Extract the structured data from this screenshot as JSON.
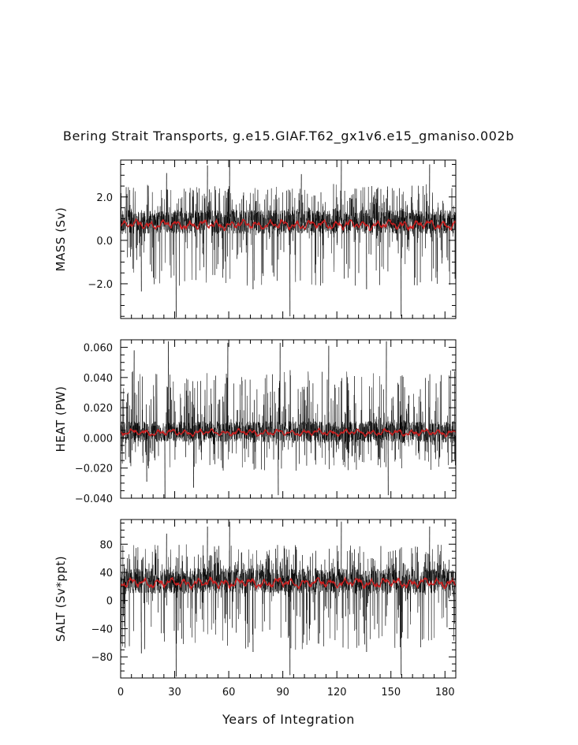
{
  "title": "Bering Strait Transports, g.e15.GIAF.T62_gx1v6.e15_gmaniso.002b",
  "xlabel": "Years of Integration",
  "colors": {
    "raw": "#000000",
    "smooth": "#cc1f1f",
    "axis": "#000000"
  },
  "chart_data": [
    {
      "type": "line",
      "ylabel": "MASS (Sv)",
      "xlim": [
        0,
        186
      ],
      "ylim": [
        -3.6,
        3.7
      ],
      "yticks": [
        -2.0,
        0.0,
        2.0
      ],
      "ytick_labels": [
        "−2.0",
        "0.0",
        "2.0"
      ],
      "xticks": [
        0,
        30,
        60,
        90,
        120,
        150,
        180
      ],
      "xtick_labels": [],
      "grid": false,
      "series": [
        {
          "kind": "monthly",
          "level": 0.85,
          "spread": 0.55,
          "peak_up": 2.6,
          "peak_down": 2.1,
          "extremes": [
            {
              "x": 48.2,
              "y": 3.45
            },
            {
              "x": 60.5,
              "y": 3.7
            },
            {
              "x": 122.5,
              "y": 3.7
            },
            {
              "x": 171.5,
              "y": 3.5
            },
            {
              "x": 30.8,
              "y": -3.55
            },
            {
              "x": 94.0,
              "y": -3.5
            },
            {
              "x": 155.7,
              "y": -3.5
            },
            {
              "x": 11.5,
              "y": -2.35
            },
            {
              "x": 25.5,
              "y": 3.1
            },
            {
              "x": 73.5,
              "y": -2.25
            },
            {
              "x": 136.5,
              "y": -2.25
            },
            {
              "x": 100.3,
              "y": 3.05
            }
          ]
        },
        {
          "kind": "smoothed",
          "level": 0.72,
          "amplitude": 0.22
        }
      ]
    },
    {
      "type": "line",
      "ylabel": "HEAT (PW)",
      "xlim": [
        0,
        186
      ],
      "ylim": [
        -0.04,
        0.065
      ],
      "yticks": [
        -0.04,
        -0.02,
        0.0,
        0.02,
        0.04,
        0.06
      ],
      "ytick_labels": [
        "−0.040",
        "−0.020",
        "0.000",
        "0.020",
        "0.040",
        "0.060"
      ],
      "xticks": [
        0,
        30,
        60,
        90,
        120,
        150,
        180
      ],
      "xtick_labels": [],
      "grid": false,
      "series": [
        {
          "kind": "monthly",
          "level": 0.004,
          "spread": 0.007,
          "peak_up": 0.045,
          "peak_down": 0.022,
          "extremes": [
            {
              "x": 26.5,
              "y": 0.064
            },
            {
              "x": 59.5,
              "y": 0.063
            },
            {
              "x": 88.5,
              "y": 0.063
            },
            {
              "x": 147.5,
              "y": 0.064
            },
            {
              "x": 7.5,
              "y": 0.058
            },
            {
              "x": 115.5,
              "y": 0.061
            },
            {
              "x": 24.6,
              "y": -0.04
            },
            {
              "x": 87.5,
              "y": -0.038
            },
            {
              "x": 148.5,
              "y": -0.038
            },
            {
              "x": 40.5,
              "y": -0.033
            },
            {
              "x": 14.5,
              "y": -0.029
            }
          ]
        },
        {
          "kind": "smoothed",
          "level": 0.0035,
          "amplitude": 0.0022
        }
      ]
    },
    {
      "type": "line",
      "ylabel": "SALT (Sv*ppt)",
      "xlim": [
        0,
        186
      ],
      "ylim": [
        -110,
        115
      ],
      "yticks": [
        -80,
        -40,
        0,
        40,
        80
      ],
      "ytick_labels": [
        "−80",
        "−40",
        "0",
        "40",
        "80"
      ],
      "xticks": [
        0,
        30,
        60,
        90,
        120,
        150,
        180
      ],
      "xtick_labels": [
        "0",
        "30",
        "60",
        "90",
        "120",
        "150",
        "180"
      ],
      "grid": false,
      "series": [
        {
          "kind": "monthly",
          "level": 28,
          "spread": 18,
          "peak_up": 80,
          "peak_down": 70,
          "extremes": [
            {
              "x": 48.2,
              "y": 105
            },
            {
              "x": 60.5,
              "y": 112
            },
            {
              "x": 122.5,
              "y": 112
            },
            {
              "x": 171.5,
              "y": 105
            },
            {
              "x": 30.8,
              "y": -108
            },
            {
              "x": 94.0,
              "y": -106
            },
            {
              "x": 155.7,
              "y": -106
            },
            {
              "x": 11.5,
              "y": -75
            },
            {
              "x": 73.5,
              "y": -73
            },
            {
              "x": 136.5,
              "y": -73
            },
            {
              "x": 25.5,
              "y": 95
            }
          ]
        },
        {
          "kind": "smoothed",
          "level": 25,
          "amplitude": 7
        }
      ]
    }
  ]
}
